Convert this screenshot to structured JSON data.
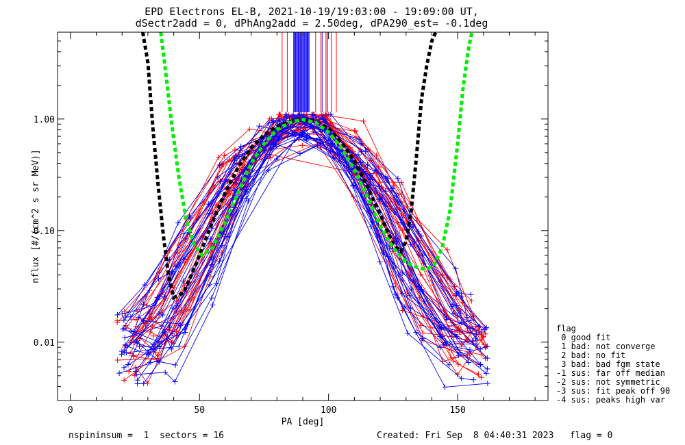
{
  "chart_data": {
    "type": "line",
    "title_lines": [
      "EPD Electrons EL-B, 2021-10-19/19:03:00 - 19:09:00 UT,",
      "dSectr2add = 0, dPhAng2add = 2.50deg, dPA290_est=  -0.1deg"
    ],
    "xlabel": "PA [deg]",
    "ylabel": "nflux [#/(cm^2 s sr MeV)]",
    "x_scale": "linear",
    "y_scale": "log",
    "xlim": [
      -5,
      185
    ],
    "ylim": [
      0.003,
      6
    ],
    "x_ticks": [
      0,
      50,
      100,
      150
    ],
    "x_tick_labels": [
      "0",
      "50",
      "100",
      "150"
    ],
    "y_ticks": [
      0.01,
      0.1,
      1.0
    ],
    "y_tick_labels": [
      "0.01",
      "0.10",
      "1.00"
    ],
    "grid": false,
    "series_colors": {
      "trace_a": "#ff0000",
      "trace_b": "#0000ff",
      "fit_1": "#000000",
      "fit_2": "#00ee00"
    },
    "traces_per_color": 30,
    "fit_curves": [
      {
        "color": "#000000",
        "x": [
          28,
          30,
          32,
          34,
          36,
          38,
          40,
          44,
          50,
          55,
          60,
          65,
          70,
          75,
          80,
          85,
          90,
          95,
          100,
          105,
          110,
          115,
          120,
          125,
          128,
          130,
          132,
          134,
          136,
          138,
          140,
          141.5
        ],
        "y": [
          6,
          3.2,
          0.8,
          0.25,
          0.09,
          0.04,
          0.025,
          0.028,
          0.06,
          0.12,
          0.22,
          0.37,
          0.55,
          0.72,
          0.86,
          0.95,
          0.99,
          0.95,
          0.82,
          0.62,
          0.42,
          0.25,
          0.14,
          0.075,
          0.065,
          0.08,
          0.15,
          0.45,
          1.5,
          3.0,
          5.0,
          6.0
        ]
      },
      {
        "color": "#00ee00",
        "x": [
          35,
          37,
          39,
          42,
          45,
          48,
          51,
          55,
          60,
          65,
          70,
          75,
          80,
          85,
          90,
          95,
          100,
          105,
          110,
          115,
          120,
          125,
          130,
          135,
          138,
          141,
          144,
          147,
          150,
          152,
          154,
          155.5
        ],
        "y": [
          6,
          2.5,
          1.0,
          0.3,
          0.12,
          0.075,
          0.06,
          0.07,
          0.12,
          0.22,
          0.4,
          0.6,
          0.8,
          0.93,
          0.99,
          0.93,
          0.76,
          0.55,
          0.35,
          0.2,
          0.11,
          0.07,
          0.052,
          0.046,
          0.045,
          0.05,
          0.07,
          0.15,
          0.6,
          1.8,
          4.0,
          6.0
        ]
      }
    ],
    "vertical_markers": {
      "red": [
        82,
        84,
        86.5,
        89,
        92,
        95,
        97,
        99,
        101,
        103
      ],
      "blue_band": [
        86.5,
        92.5
      ],
      "blue_extra": [
        97.5,
        99.5
      ],
      "y_range": [
        1.15,
        6
      ]
    },
    "legend": {
      "title": "flag",
      "entries": [
        " 0 good fit",
        " 1 bad: not converge",
        " 2 bad: no fit",
        " 3 bad: bad fgm state",
        "-1 sus: far off median",
        "-2 sus: not symmetric",
        "-3 sus: fit peak off 90",
        "-4 sus: peaks high var"
      ]
    }
  },
  "footer": {
    "left": "nspininsum =  1  sectors = 16",
    "right": "Created: Fri Sep  8 04:40:31 2023   flag = 0"
  }
}
